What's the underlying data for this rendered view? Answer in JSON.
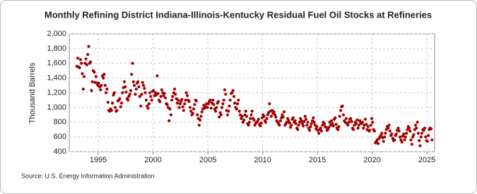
{
  "chart_data": {
    "type": "scatter",
    "title": "Monthly Refining District Indiana-Illinois-Kentucky Residual Fuel Oil Stocks at Refineries",
    "y_label": "Thousand Barrels",
    "source": "Source: U.S. Energy Information Administration",
    "color": "#a00000",
    "grid": true,
    "xlim": [
      1992.35,
      2025.7
    ],
    "xticks": [
      1995,
      2000,
      2005,
      2010,
      2015,
      2020,
      2025
    ],
    "ylim": [
      400,
      2000
    ],
    "yticks": [
      400,
      600,
      800,
      {
        "value": 1000,
        "label": "1,000"
      },
      {
        "value": 1200,
        "label": "1,200"
      },
      {
        "value": 1400,
        "label": "1,400"
      },
      {
        "value": 1600,
        "label": "1,600"
      },
      {
        "value": 1800,
        "label": "1,800"
      },
      {
        "value": 2000,
        "label": "2,000"
      }
    ],
    "x": [
      1993.04,
      1993.13,
      1993.21,
      1993.29,
      1993.38,
      1993.46,
      1993.54,
      1993.63,
      1993.71,
      1993.79,
      1993.88,
      1993.96,
      1994.04,
      1994.13,
      1994.21,
      1994.29,
      1994.38,
      1994.46,
      1994.54,
      1994.63,
      1994.71,
      1994.79,
      1994.88,
      1994.96,
      1995.04,
      1995.13,
      1995.21,
      1995.29,
      1995.38,
      1995.46,
      1995.54,
      1995.63,
      1995.71,
      1995.79,
      1995.88,
      1995.96,
      1996.04,
      1996.13,
      1996.21,
      1996.29,
      1996.38,
      1996.46,
      1996.54,
      1996.63,
      1996.71,
      1996.79,
      1996.88,
      1996.96,
      1997.04,
      1997.13,
      1997.21,
      1997.29,
      1997.38,
      1997.46,
      1997.54,
      1997.63,
      1997.71,
      1997.79,
      1997.88,
      1997.96,
      1998.04,
      1998.13,
      1998.21,
      1998.29,
      1998.38,
      1998.46,
      1998.54,
      1998.63,
      1998.71,
      1998.79,
      1998.88,
      1998.96,
      1999.04,
      1999.13,
      1999.21,
      1999.29,
      1999.38,
      1999.46,
      1999.54,
      1999.63,
      1999.71,
      1999.79,
      1999.88,
      1999.96,
      2000.04,
      2000.13,
      2000.21,
      2000.29,
      2000.38,
      2000.46,
      2000.54,
      2000.63,
      2000.71,
      2000.79,
      2000.88,
      2000.96,
      2001.04,
      2001.13,
      2001.21,
      2001.29,
      2001.38,
      2001.46,
      2001.54,
      2001.63,
      2001.71,
      2001.79,
      2001.88,
      2001.96,
      2002.04,
      2002.13,
      2002.21,
      2002.29,
      2002.38,
      2002.46,
      2002.54,
      2002.63,
      2002.71,
      2002.79,
      2002.88,
      2002.96,
      2003.04,
      2003.13,
      2003.21,
      2003.29,
      2003.38,
      2003.46,
      2003.54,
      2003.63,
      2003.71,
      2003.79,
      2003.88,
      2003.96,
      2004.04,
      2004.13,
      2004.21,
      2004.29,
      2004.38,
      2004.46,
      2004.54,
      2004.63,
      2004.71,
      2004.79,
      2004.88,
      2004.96,
      2005.04,
      2005.13,
      2005.21,
      2005.29,
      2005.38,
      2005.46,
      2005.54,
      2005.63,
      2005.71,
      2005.79,
      2005.88,
      2005.96,
      2006.04,
      2006.13,
      2006.21,
      2006.29,
      2006.38,
      2006.46,
      2006.54,
      2006.63,
      2006.71,
      2006.79,
      2006.88,
      2006.96,
      2007.04,
      2007.13,
      2007.21,
      2007.29,
      2007.38,
      2007.46,
      2007.54,
      2007.63,
      2007.71,
      2007.79,
      2007.88,
      2007.96,
      2008.04,
      2008.13,
      2008.21,
      2008.29,
      2008.38,
      2008.46,
      2008.54,
      2008.63,
      2008.71,
      2008.79,
      2008.88,
      2008.96,
      2009.04,
      2009.13,
      2009.21,
      2009.29,
      2009.38,
      2009.46,
      2009.54,
      2009.63,
      2009.71,
      2009.79,
      2009.88,
      2009.96,
      2010.04,
      2010.13,
      2010.21,
      2010.29,
      2010.38,
      2010.46,
      2010.54,
      2010.63,
      2010.71,
      2010.79,
      2010.88,
      2010.96,
      2011.04,
      2011.13,
      2011.21,
      2011.29,
      2011.38,
      2011.46,
      2011.54,
      2011.63,
      2011.71,
      2011.79,
      2011.88,
      2011.96,
      2012.04,
      2012.13,
      2012.21,
      2012.29,
      2012.38,
      2012.46,
      2012.54,
      2012.63,
      2012.71,
      2012.79,
      2012.88,
      2012.96,
      2013.04,
      2013.13,
      2013.21,
      2013.29,
      2013.38,
      2013.46,
      2013.54,
      2013.63,
      2013.71,
      2013.79,
      2013.88,
      2013.96,
      2014.04,
      2014.13,
      2014.21,
      2014.29,
      2014.38,
      2014.46,
      2014.54,
      2014.63,
      2014.71,
      2014.79,
      2014.88,
      2014.96,
      2015.04,
      2015.13,
      2015.21,
      2015.29,
      2015.38,
      2015.46,
      2015.54,
      2015.63,
      2015.71,
      2015.79,
      2015.88,
      2015.96,
      2016.04,
      2016.13,
      2016.21,
      2016.29,
      2016.38,
      2016.46,
      2016.54,
      2016.63,
      2016.71,
      2016.79,
      2016.88,
      2016.96,
      2017.04,
      2017.13,
      2017.21,
      2017.29,
      2017.38,
      2017.46,
      2017.54,
      2017.63,
      2017.71,
      2017.79,
      2017.88,
      2017.96,
      2018.04,
      2018.13,
      2018.21,
      2018.29,
      2018.38,
      2018.46,
      2018.54,
      2018.63,
      2018.71,
      2018.79,
      2018.88,
      2018.96,
      2019.04,
      2019.13,
      2019.21,
      2019.29,
      2019.38,
      2019.46,
      2019.54,
      2019.63,
      2019.71,
      2019.79,
      2019.88,
      2019.96,
      2020.04,
      2020.13,
      2020.21,
      2020.29,
      2020.38,
      2020.46,
      2020.54,
      2020.63,
      2020.71,
      2020.79,
      2020.88,
      2020.96,
      2021.04,
      2021.13,
      2021.21,
      2021.29,
      2021.38,
      2021.46,
      2021.54,
      2021.63,
      2021.71,
      2021.79,
      2021.88,
      2021.96,
      2022.04,
      2022.13,
      2022.21,
      2022.29,
      2022.38,
      2022.46,
      2022.54,
      2022.63,
      2022.71,
      2022.79,
      2022.88,
      2022.96,
      2023.04,
      2023.13,
      2023.21,
      2023.29,
      2023.38,
      2023.46,
      2023.54,
      2023.63,
      2023.71,
      2023.79,
      2023.88,
      2023.96,
      2024.04,
      2024.13,
      2024.21,
      2024.29,
      2024.38,
      2024.46,
      2024.54,
      2024.63,
      2024.71,
      2024.79,
      2024.88,
      2024.96,
      2025.04,
      2025.13,
      2025.21,
      2025.29,
      2025.38,
      2025.46
    ],
    "values": [
      1560,
      1670,
      1550,
      1540,
      1650,
      1600,
      1460,
      1250,
      1420,
      1600,
      1660,
      1580,
      1720,
      1830,
      1600,
      1620,
      1230,
      1350,
      1500,
      1480,
      1340,
      1420,
      1330,
      1300,
      1330,
      1280,
      1240,
      1300,
      1430,
      1400,
      1450,
      1300,
      1200,
      1250,
      1070,
      960,
      950,
      980,
      960,
      1060,
      1170,
      1200,
      1000,
      950,
      960,
      1090,
      1100,
      1120,
      1010,
      1060,
      1200,
      1270,
      1350,
      1280,
      1210,
      1120,
      1100,
      1150,
      1180,
      1230,
      1450,
      1600,
      1350,
      1300,
      1180,
      1250,
      1330,
      1350,
      1280,
      1150,
      1020,
      1180,
      1340,
      1300,
      1260,
      1200,
      1100,
      1020,
      990,
      1050,
      1200,
      1150,
      1100,
      1220,
      1230,
      1160,
      1200,
      1170,
      1430,
      1190,
      1100,
      1080,
      1150,
      1240,
      1200,
      1160,
      1190,
      1130,
      1050,
      1040,
      1000,
      820,
      980,
      900,
      1100,
      1150,
      1200,
      1250,
      1180,
      1120,
      1060,
      1100,
      1000,
      1050,
      1080,
      1110,
      1010,
      960,
      1050,
      1100,
      1200,
      1160,
      1100,
      1080,
      1000,
      950,
      900,
      920,
      980,
      1040,
      1100,
      1090,
      900,
      850,
      760,
      830,
      880,
      940,
      980,
      1030,
      990,
      1010,
      1050,
      1000,
      1050,
      1080,
      1100,
      990,
      1060,
      1100,
      1040,
      980,
      950,
      1000,
      1060,
      1080,
      870,
      930,
      900,
      1000,
      1050,
      1100,
      1240,
      1180,
      960,
      900,
      950,
      1020,
      1100,
      1190,
      1200,
      1230,
      1150,
      1060,
      1000,
      980,
      1050,
      1100,
      950,
      900,
      850,
      880,
      800,
      830,
      900,
      950,
      880,
      780,
      760,
      800,
      850,
      900,
      950,
      850,
      830,
      760,
      790,
      800,
      810,
      840,
      770,
      750,
      790,
      860,
      900,
      880,
      820,
      800,
      850,
      900,
      930,
      1050,
      950,
      880,
      960,
      920,
      940,
      900,
      870,
      820,
      800,
      780,
      760,
      820,
      860,
      900,
      870,
      940,
      760,
      780,
      800,
      850,
      820,
      790,
      730,
      760,
      840,
      860,
      800,
      820,
      780,
      720,
      700,
      760,
      800,
      850,
      820,
      780,
      750,
      810,
      880,
      840,
      760,
      800,
      720,
      690,
      740,
      780,
      820,
      860,
      800,
      760,
      710,
      740,
      690,
      650,
      700,
      720,
      680,
      760,
      800,
      780,
      740,
      730,
      690,
      700,
      730,
      800,
      760,
      820,
      780,
      750,
      840,
      860,
      770,
      720,
      700,
      740,
      880,
      960,
      1010,
      1020,
      900,
      820,
      800,
      850,
      780,
      760,
      800,
      840,
      850,
      810,
      720,
      700,
      760,
      800,
      780,
      830,
      720,
      760,
      820,
      790,
      780,
      800,
      720,
      760,
      840,
      770,
      700,
      740,
      680,
      690,
      760,
      850,
      800,
      700,
      680,
      520,
      540,
      560,
      510,
      580,
      600,
      620,
      650,
      590,
      540,
      600,
      650,
      700,
      740,
      720,
      760,
      680,
      620,
      640,
      580,
      550,
      560,
      620,
      640,
      690,
      720,
      680,
      600,
      560,
      530,
      610,
      640,
      560,
      600,
      650,
      700,
      740,
      720,
      680,
      560,
      500,
      600,
      630,
      700,
      760,
      720,
      800,
      650,
      550,
      480,
      600,
      650,
      700,
      690,
      720,
      600,
      550,
      540,
      620,
      700,
      720,
      710,
      560
    ]
  }
}
